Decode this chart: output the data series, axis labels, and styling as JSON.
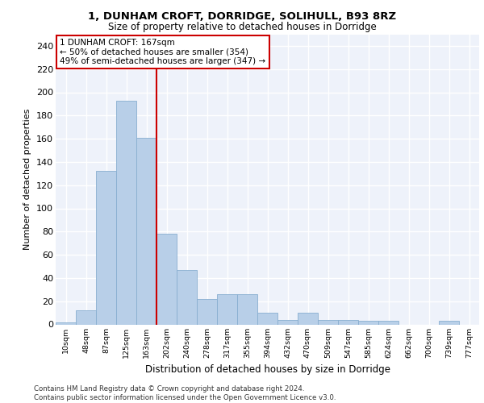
{
  "title1": "1, DUNHAM CROFT, DORRIDGE, SOLIHULL, B93 8RZ",
  "title2": "Size of property relative to detached houses in Dorridge",
  "xlabel": "Distribution of detached houses by size in Dorridge",
  "ylabel": "Number of detached properties",
  "bar_labels": [
    "10sqm",
    "48sqm",
    "87sqm",
    "125sqm",
    "163sqm",
    "202sqm",
    "240sqm",
    "278sqm",
    "317sqm",
    "355sqm",
    "394sqm",
    "432sqm",
    "470sqm",
    "509sqm",
    "547sqm",
    "585sqm",
    "624sqm",
    "662sqm",
    "700sqm",
    "739sqm",
    "777sqm"
  ],
  "bar_values": [
    2,
    12,
    132,
    193,
    161,
    78,
    47,
    22,
    26,
    26,
    10,
    4,
    10,
    4,
    4,
    3,
    3,
    0,
    0,
    3,
    0
  ],
  "bar_color": "#b8cfe8",
  "bar_edgecolor": "#88aed0",
  "bg_color": "#eef2fa",
  "grid_color": "#ffffff",
  "vline_x_idx": 4,
  "vline_color": "#cc0000",
  "annotation_text": "1 DUNHAM CROFT: 167sqm\n← 50% of detached houses are smaller (354)\n49% of semi-detached houses are larger (347) →",
  "annotation_box_facecolor": "#ffffff",
  "annotation_box_edgecolor": "#cc0000",
  "footer_text": "Contains HM Land Registry data © Crown copyright and database right 2024.\nContains public sector information licensed under the Open Government Licence v3.0.",
  "ylim": [
    0,
    250
  ],
  "yticks": [
    0,
    20,
    40,
    60,
    80,
    100,
    120,
    140,
    160,
    180,
    200,
    220,
    240
  ]
}
